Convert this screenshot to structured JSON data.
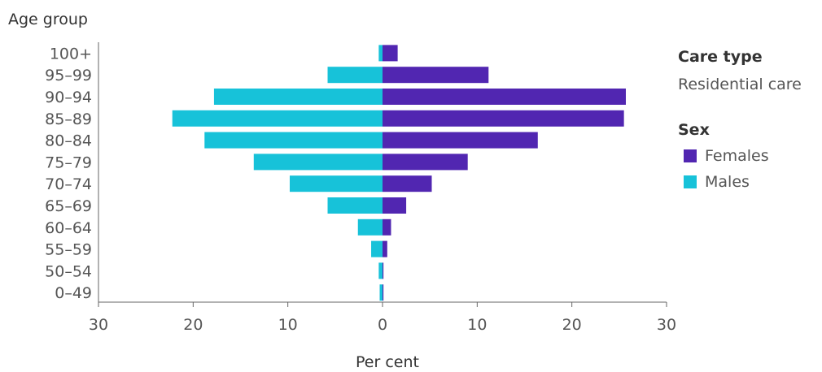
{
  "chart_data": {
    "type": "bar",
    "orientation": "horizontal-population-pyramid",
    "title": "",
    "ylabel": "Age group",
    "xlabel": "Per cent",
    "categories": [
      "100+",
      "95–99",
      "90–94",
      "85–89",
      "80–84",
      "75–79",
      "70–74",
      "65–69",
      "60–64",
      "55–59",
      "50–54",
      "0–49"
    ],
    "series": [
      {
        "name": "Females",
        "color": "#5126b1",
        "side": "right",
        "values": [
          1.6,
          11.2,
          25.7,
          25.5,
          16.4,
          9.0,
          5.2,
          2.5,
          0.9,
          0.5,
          0.1,
          0.1
        ]
      },
      {
        "name": "Males",
        "color": "#17c2d9",
        "side": "left",
        "values": [
          0.4,
          5.8,
          17.8,
          22.2,
          18.8,
          13.6,
          9.8,
          5.8,
          2.6,
          1.2,
          0.4,
          0.3
        ]
      }
    ],
    "xlim": [
      -30,
      30
    ],
    "xticks": [
      -30,
      -20,
      -10,
      0,
      10,
      20,
      30
    ],
    "xtick_labels": [
      "30",
      "20",
      "10",
      "0",
      "10",
      "20",
      "30"
    ],
    "grid": false,
    "legend_position": "right"
  },
  "legend": {
    "care_type_heading": "Care type",
    "care_type_value": "Residential care",
    "sex_heading": "Sex"
  }
}
